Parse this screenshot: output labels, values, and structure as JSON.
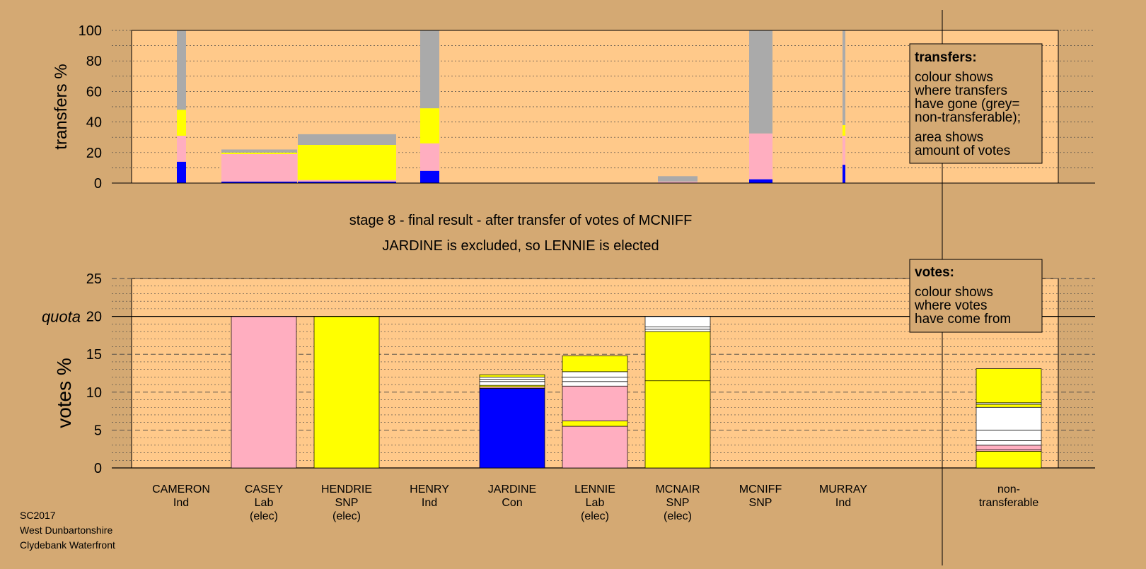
{
  "colors": {
    "page_bg": "#d4a973",
    "plot_bg": "#ffc98a",
    "legend_bg": "#d4a973",
    "Con": "#0000ff",
    "Lab": "#ffaec0",
    "SNP": "#ffff00",
    "Ind": "#ffffff",
    "nontransferable": "#aaaaaa"
  },
  "stage_title": "stage 8 - final result - after transfer of votes of MCNIFF",
  "stage_subtitle": "JARDINE is excluded, so LENNIE is elected",
  "footer": [
    "SC2017",
    "West Dunbartonshire",
    "Clydebank Waterfront"
  ],
  "quota_label": "quota",
  "legend_transfers": {
    "title": "transfers:",
    "lines1": [
      "colour shows",
      "where transfers",
      "have gone (grey=",
      "non-transferable);"
    ],
    "lines2": [
      "area shows",
      "amount of votes"
    ]
  },
  "legend_votes": {
    "title": "votes:",
    "lines": [
      "colour shows",
      "where votes",
      "have come from"
    ]
  },
  "chart_data": [
    {
      "type": "bar",
      "title": "",
      "ylabel": "transfers %",
      "ylim": [
        0,
        100
      ],
      "yticks": [
        0,
        20,
        40,
        60,
        80,
        100
      ],
      "grid": true,
      "description_stacks": "each transfer bar: width = votes transferred, segments = share going to each party (bottom to top)",
      "series": [
        {
          "name": "CAMERON transfers",
          "segments": [
            {
              "party": "Con",
              "value": 14
            },
            {
              "party": "Lab",
              "value": 17
            },
            {
              "party": "SNP",
              "value": 17
            },
            {
              "party": "nontransferable",
              "value": 52
            }
          ]
        },
        {
          "name": "CASEY surplus",
          "segments": [
            {
              "party": "Con",
              "value": 1
            },
            {
              "party": "Lab",
              "value": 18
            },
            {
              "party": "SNP",
              "value": 1
            },
            {
              "party": "nontransferable",
              "value": 2
            }
          ]
        },
        {
          "name": "HENDRIE surplus",
          "segments": [
            {
              "party": "Con",
              "value": 1
            },
            {
              "party": "Lab",
              "value": 1
            },
            {
              "party": "SNP",
              "value": 23
            },
            {
              "party": "nontransferable",
              "value": 7
            }
          ]
        },
        {
          "name": "HENRY transfers",
          "segments": [
            {
              "party": "Con",
              "value": 8
            },
            {
              "party": "Lab",
              "value": 18
            },
            {
              "party": "SNP",
              "value": 23
            },
            {
              "party": "nontransferable",
              "value": 51
            }
          ]
        },
        {
          "name": "MCNAIR surplus",
          "segments": [
            {
              "party": "Con",
              "value": 0.3
            },
            {
              "party": "Lab",
              "value": 0.7
            },
            {
              "party": "nontransferable",
              "value": 3.5
            }
          ]
        },
        {
          "name": "MCNIFF transfers",
          "segments": [
            {
              "party": "Con",
              "value": 2.5
            },
            {
              "party": "Lab",
              "value": 30
            },
            {
              "party": "nontransferable",
              "value": 67.5
            }
          ]
        },
        {
          "name": "MURRAY transfers",
          "segments": [
            {
              "party": "Con",
              "value": 12
            },
            {
              "party": "Lab",
              "value": 19
            },
            {
              "party": "SNP",
              "value": 7
            },
            {
              "party": "nontransferable",
              "value": 62
            }
          ]
        }
      ]
    },
    {
      "type": "bar",
      "title": "",
      "ylabel": "votes %",
      "ylim": [
        0,
        25
      ],
      "yticks": [
        0,
        5,
        10,
        15,
        20,
        25
      ],
      "quota": 20,
      "grid": true,
      "categories": [
        "CAMERON",
        "CASEY",
        "HENDRIE",
        "HENRY",
        "JARDINE",
        "LENNIE",
        "MCNAIR",
        "MCNIFF",
        "MURRAY",
        "non-transferable"
      ],
      "category_labels": [
        [
          "CAMERON",
          "Ind"
        ],
        [
          "CASEY",
          "Lab",
          "(elec)"
        ],
        [
          "HENDRIE",
          "SNP",
          "(elec)"
        ],
        [
          "HENRY",
          "Ind"
        ],
        [
          "JARDINE",
          "Con"
        ],
        [
          "LENNIE",
          "Lab",
          "(elec)"
        ],
        [
          "MCNAIR",
          "SNP",
          "(elec)"
        ],
        [
          "MCNIFF",
          "SNP"
        ],
        [
          "MURRAY",
          "Ind"
        ],
        [
          "non-",
          "transferable"
        ]
      ],
      "totals": [
        0,
        20,
        20,
        0,
        12.3,
        14.8,
        20,
        0,
        0,
        13.1
      ],
      "stacks": [
        [],
        [
          {
            "party": "Lab",
            "value": 20
          }
        ],
        [
          {
            "party": "SNP",
            "value": 20
          }
        ],
        [],
        [
          {
            "party": "Con",
            "value": 10.5
          },
          {
            "party": "Lab",
            "value": 0.2
          },
          {
            "party": "SNP",
            "value": 0.2
          },
          {
            "party": "Ind",
            "value": 0.5
          },
          {
            "party": "Ind",
            "value": 0.3
          },
          {
            "party": "Ind",
            "value": 0.3
          },
          {
            "party": "SNP",
            "value": 0.3
          }
        ],
        [
          {
            "party": "Lab",
            "value": 5.5
          },
          {
            "party": "SNP",
            "value": 0.7
          },
          {
            "party": "Lab",
            "value": 4.6
          },
          {
            "party": "Ind",
            "value": 0.6
          },
          {
            "party": "Ind",
            "value": 0.6
          },
          {
            "party": "Ind",
            "value": 0.7
          },
          {
            "party": "SNP",
            "value": 2.1
          }
        ],
        [
          {
            "party": "SNP",
            "value": 11.5
          },
          {
            "party": "SNP",
            "value": 6.5
          },
          {
            "party": "Ind",
            "value": 0.3
          },
          {
            "party": "Ind",
            "value": 0.3
          },
          {
            "party": "Ind",
            "value": 1.4
          }
        ],
        [],
        [],
        [
          {
            "party": "SNP",
            "value": 2.2
          },
          {
            "party": "Lab",
            "value": 0.2
          },
          {
            "party": "Lab",
            "value": 0.6
          },
          {
            "party": "Ind",
            "value": 0.6
          },
          {
            "party": "Ind",
            "value": 1.4
          },
          {
            "party": "Ind",
            "value": 3.0
          },
          {
            "party": "SNP",
            "value": 0.4
          },
          {
            "party": "Ind",
            "value": 0.2
          },
          {
            "party": "SNP",
            "value": 4.5
          }
        ]
      ]
    }
  ]
}
